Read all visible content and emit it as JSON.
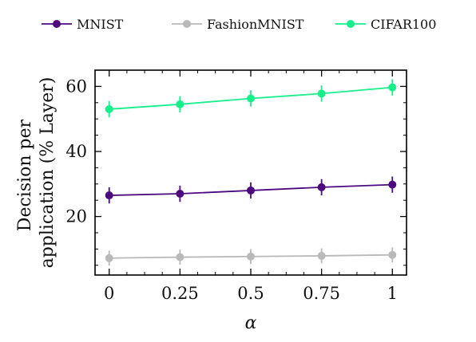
{
  "chart_data": {
    "type": "line",
    "x": [
      0,
      0.25,
      0.5,
      0.75,
      1
    ],
    "x_tick_labels": [
      "0",
      "0.25",
      "0.5",
      "0.75",
      "1"
    ],
    "xlim": [
      -0.05,
      1.05
    ],
    "y_ticks": [
      20,
      40,
      60
    ],
    "y_tick_labels": [
      "20",
      "40",
      "60"
    ],
    "ylim": [
      2,
      65
    ],
    "xlabel": "α",
    "ylabel": [
      "Decision per",
      "application (% Layer)"
    ],
    "legend_position": "top",
    "series": [
      {
        "name": "MNIST",
        "color": "#4b0a7d",
        "values": [
          26.5,
          27.0,
          28.0,
          29.0,
          29.8
        ],
        "errors": [
          2.5,
          2.5,
          2.5,
          2.5,
          2.5
        ]
      },
      {
        "name": "FashionMNIST",
        "color": "#b9b9b9",
        "values": [
          7.2,
          7.5,
          7.7,
          7.9,
          8.2
        ],
        "errors": [
          2.3,
          2.3,
          2.3,
          2.3,
          2.3
        ]
      },
      {
        "name": "CIFAR100",
        "color": "#15f08a",
        "values": [
          53.0,
          54.5,
          56.3,
          57.8,
          59.7
        ],
        "errors": [
          2.5,
          2.5,
          2.5,
          2.5,
          2.5
        ]
      }
    ]
  }
}
